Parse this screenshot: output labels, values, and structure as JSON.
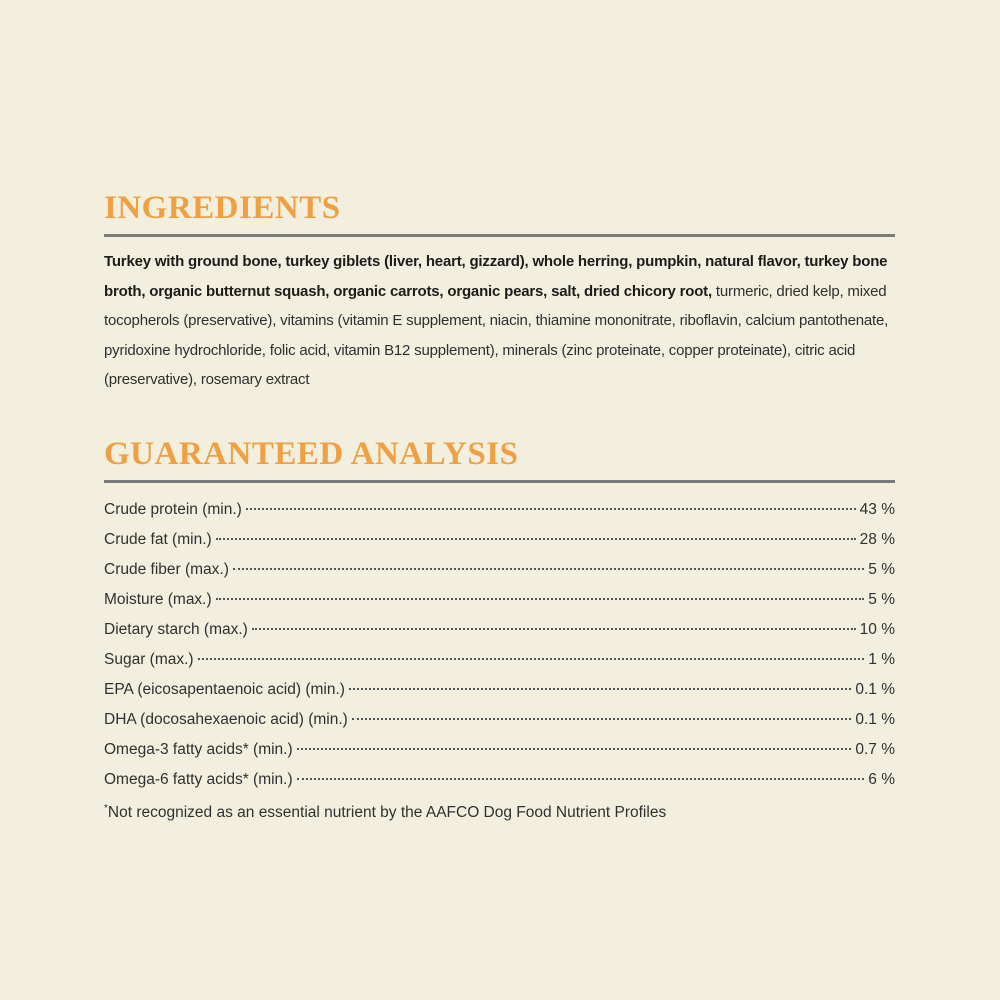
{
  "ingredients": {
    "title": "INGREDIENTS",
    "bold_text": "Turkey with ground bone, turkey giblets (liver, heart, gizzard), whole herring, pumpkin, natural flavor, turkey bone broth, organic butternut squash, organic carrots, organic pears, salt, dried chicory root,",
    "text": "turmeric, dried kelp, mixed tocopherols (preservative), vitamins (vitamin E supplement, niacin, thiamine mononitrate, riboflavin, calcium pantothenate, pyridoxine hydrochloride, folic acid, vitamin B12 supplement), minerals (zinc proteinate, copper proteinate), citric acid (preservative), rosemary extract"
  },
  "analysis": {
    "title": "GUARANTEED ANALYSIS",
    "rows": [
      {
        "label": "Crude protein (min.)",
        "value": "43 %"
      },
      {
        "label": "Crude fat (min.)",
        "value": "28 %"
      },
      {
        "label": "Crude fiber (max.)",
        "value": "5 %"
      },
      {
        "label": "Moisture (max.)",
        "value": "5 %"
      },
      {
        "label": "Dietary starch (max.)",
        "value": "10 %"
      },
      {
        "label": "Sugar (max.)",
        "value": "1 %"
      },
      {
        "label": "EPA (eicosapentaenoic acid) (min.)",
        "value": "0.1 %"
      },
      {
        "label": "DHA (docosahexaenoic acid) (min.)",
        "value": "0.1 %"
      },
      {
        "label": "Omega-3 fatty acids* (min.)",
        "value": "0.7 %"
      },
      {
        "label": "Omega-6 fatty acids* (min.)",
        "value": "6 %"
      }
    ],
    "footnote_marker": "*",
    "footnote": "Not recognized as an essential nutrient by the AAFCO Dog Food Nutrient Profiles"
  }
}
